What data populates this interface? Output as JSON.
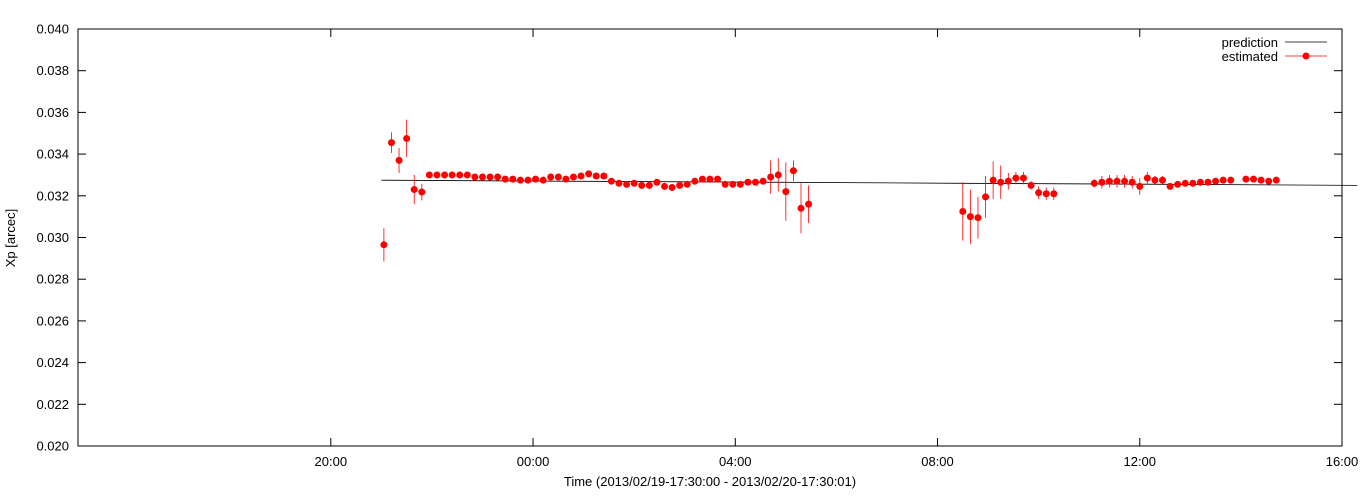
{
  "chart_data": {
    "type": "scatter",
    "xlabel": "Time (2013/02/19-17:30:00 - 2013/02/20-17:30:01)",
    "ylabel": "Xp [arcec]",
    "xlim": [
      -2.5,
      22.5
    ],
    "ylim": [
      0.02,
      0.04
    ],
    "grid": false,
    "legend_position": "top-right",
    "x_ticks": [
      {
        "value": 2.5,
        "label": "20:00"
      },
      {
        "value": 6.5,
        "label": "00:00"
      },
      {
        "value": 10.5,
        "label": "04:00"
      },
      {
        "value": 14.5,
        "label": "08:00"
      },
      {
        "value": 18.5,
        "label": "12:00"
      },
      {
        "value": 22.5,
        "label": "16:00"
      }
    ],
    "y_ticks": [
      {
        "value": 0.02,
        "label": "0.020"
      },
      {
        "value": 0.022,
        "label": "0.022"
      },
      {
        "value": 0.024,
        "label": "0.024"
      },
      {
        "value": 0.026,
        "label": "0.026"
      },
      {
        "value": 0.028,
        "label": "0.028"
      },
      {
        "value": 0.03,
        "label": "0.030"
      },
      {
        "value": 0.032,
        "label": "0.032"
      },
      {
        "value": 0.034,
        "label": "0.034"
      },
      {
        "value": 0.036,
        "label": "0.036"
      },
      {
        "value": 0.038,
        "label": "0.038"
      },
      {
        "value": 0.04,
        "label": "0.040"
      }
    ],
    "series": [
      {
        "name": "prediction",
        "style": "line",
        "color": "#000000",
        "points": [
          [
            3.5,
            0.03275
          ],
          [
            7.0,
            0.0327
          ],
          [
            11.0,
            0.03265
          ],
          [
            15.0,
            0.0326
          ],
          [
            19.0,
            0.03255
          ],
          [
            22.8,
            0.0325
          ]
        ]
      },
      {
        "name": "estimated",
        "style": "points-errorbars",
        "color": "#ff0000",
        "points": [
          [
            3.55,
            0.02965,
            0.0008
          ],
          [
            3.7,
            0.03455,
            0.0005
          ],
          [
            3.85,
            0.0337,
            0.0006
          ],
          [
            4.0,
            0.03475,
            0.0009
          ],
          [
            4.15,
            0.0323,
            0.0007
          ],
          [
            4.3,
            0.03218,
            0.0004
          ],
          [
            4.45,
            0.033,
            0.0001
          ],
          [
            4.6,
            0.033,
            0.0001
          ],
          [
            4.75,
            0.033,
            0.0001
          ],
          [
            4.9,
            0.033,
            0.0001
          ],
          [
            5.05,
            0.033,
            0.0001
          ],
          [
            5.2,
            0.033,
            0.0001
          ],
          [
            5.35,
            0.0329,
            0.0001
          ],
          [
            5.5,
            0.0329,
            0.0001
          ],
          [
            5.65,
            0.0329,
            0.0001
          ],
          [
            5.8,
            0.0329,
            0.0001
          ],
          [
            5.95,
            0.0328,
            0.0001
          ],
          [
            6.1,
            0.0328,
            0.0001
          ],
          [
            6.25,
            0.03275,
            0.0001
          ],
          [
            6.4,
            0.03275,
            0.0001
          ],
          [
            6.55,
            0.0328,
            0.0001
          ],
          [
            6.7,
            0.03275,
            0.0001
          ],
          [
            6.85,
            0.0329,
            0.0001
          ],
          [
            7.0,
            0.0329,
            0.0001
          ],
          [
            7.15,
            0.0328,
            0.0001
          ],
          [
            7.3,
            0.0329,
            0.0001
          ],
          [
            7.45,
            0.03295,
            0.0001
          ],
          [
            7.6,
            0.03305,
            0.0001
          ],
          [
            7.75,
            0.03295,
            0.0001
          ],
          [
            7.9,
            0.03295,
            0.0001
          ],
          [
            8.05,
            0.0327,
            0.0001
          ],
          [
            8.2,
            0.0326,
            0.0001
          ],
          [
            8.35,
            0.03255,
            0.0001
          ],
          [
            8.5,
            0.0326,
            0.0001
          ],
          [
            8.65,
            0.0325,
            0.0001
          ],
          [
            8.8,
            0.0325,
            0.0001
          ],
          [
            8.95,
            0.03265,
            0.0001
          ],
          [
            9.1,
            0.03245,
            0.0001
          ],
          [
            9.25,
            0.0324,
            0.0001
          ],
          [
            9.4,
            0.0325,
            0.0001
          ],
          [
            9.55,
            0.03255,
            0.0001
          ],
          [
            9.7,
            0.0327,
            0.0001
          ],
          [
            9.85,
            0.0328,
            0.0001
          ],
          [
            10.0,
            0.0328,
            0.0001
          ],
          [
            10.15,
            0.0328,
            0.0001
          ],
          [
            10.3,
            0.03255,
            0.0001
          ],
          [
            10.45,
            0.03255,
            0.0001
          ],
          [
            10.6,
            0.03255,
            0.0001
          ],
          [
            10.75,
            0.03265,
            0.0001
          ],
          [
            10.9,
            0.03265,
            0.0001
          ],
          [
            11.05,
            0.0327,
            0.0001
          ],
          [
            11.2,
            0.0329,
            0.0008
          ],
          [
            11.35,
            0.033,
            0.0008
          ],
          [
            11.5,
            0.0322,
            0.0014
          ],
          [
            11.65,
            0.0332,
            0.0005
          ],
          [
            11.8,
            0.0314,
            0.0012
          ],
          [
            11.95,
            0.0316,
            0.0009
          ],
          [
            15.0,
            0.03125,
            0.0014
          ],
          [
            15.15,
            0.031,
            0.0013
          ],
          [
            15.3,
            0.03095,
            0.001
          ],
          [
            15.45,
            0.03195,
            0.001
          ],
          [
            15.6,
            0.03275,
            0.0009
          ],
          [
            15.75,
            0.03265,
            0.0008
          ],
          [
            15.9,
            0.0327,
            0.0004
          ],
          [
            16.05,
            0.03285,
            0.0003
          ],
          [
            16.2,
            0.03285,
            0.0003
          ],
          [
            16.35,
            0.0325,
            0.0002
          ],
          [
            16.5,
            0.03215,
            0.0003
          ],
          [
            16.65,
            0.0321,
            0.0003
          ],
          [
            16.8,
            0.0321,
            0.0003
          ],
          [
            17.6,
            0.0326,
            0.0002
          ],
          [
            17.75,
            0.03265,
            0.0003
          ],
          [
            17.9,
            0.0327,
            0.0003
          ],
          [
            18.05,
            0.0327,
            0.0003
          ],
          [
            18.2,
            0.0327,
            0.0003
          ],
          [
            18.35,
            0.03265,
            0.0003
          ],
          [
            18.5,
            0.03245,
            0.0004
          ],
          [
            18.65,
            0.03285,
            0.0003
          ],
          [
            18.8,
            0.03275,
            0.0002
          ],
          [
            18.95,
            0.03275,
            0.0002
          ],
          [
            19.1,
            0.03245,
            0.0001
          ],
          [
            19.25,
            0.03255,
            0.0001
          ],
          [
            19.4,
            0.0326,
            0.0001
          ],
          [
            19.55,
            0.0326,
            0.0001
          ],
          [
            19.7,
            0.03265,
            0.0001
          ],
          [
            19.85,
            0.03265,
            0.0001
          ],
          [
            20.0,
            0.0327,
            0.0001
          ],
          [
            20.15,
            0.03275,
            0.0001
          ],
          [
            20.3,
            0.03275,
            0.0001
          ],
          [
            20.6,
            0.0328,
            0.0001
          ],
          [
            20.75,
            0.0328,
            0.0001
          ],
          [
            20.9,
            0.03275,
            0.0001
          ],
          [
            21.05,
            0.0327,
            0.0001
          ],
          [
            21.2,
            0.03275,
            0.0001
          ]
        ]
      }
    ]
  }
}
